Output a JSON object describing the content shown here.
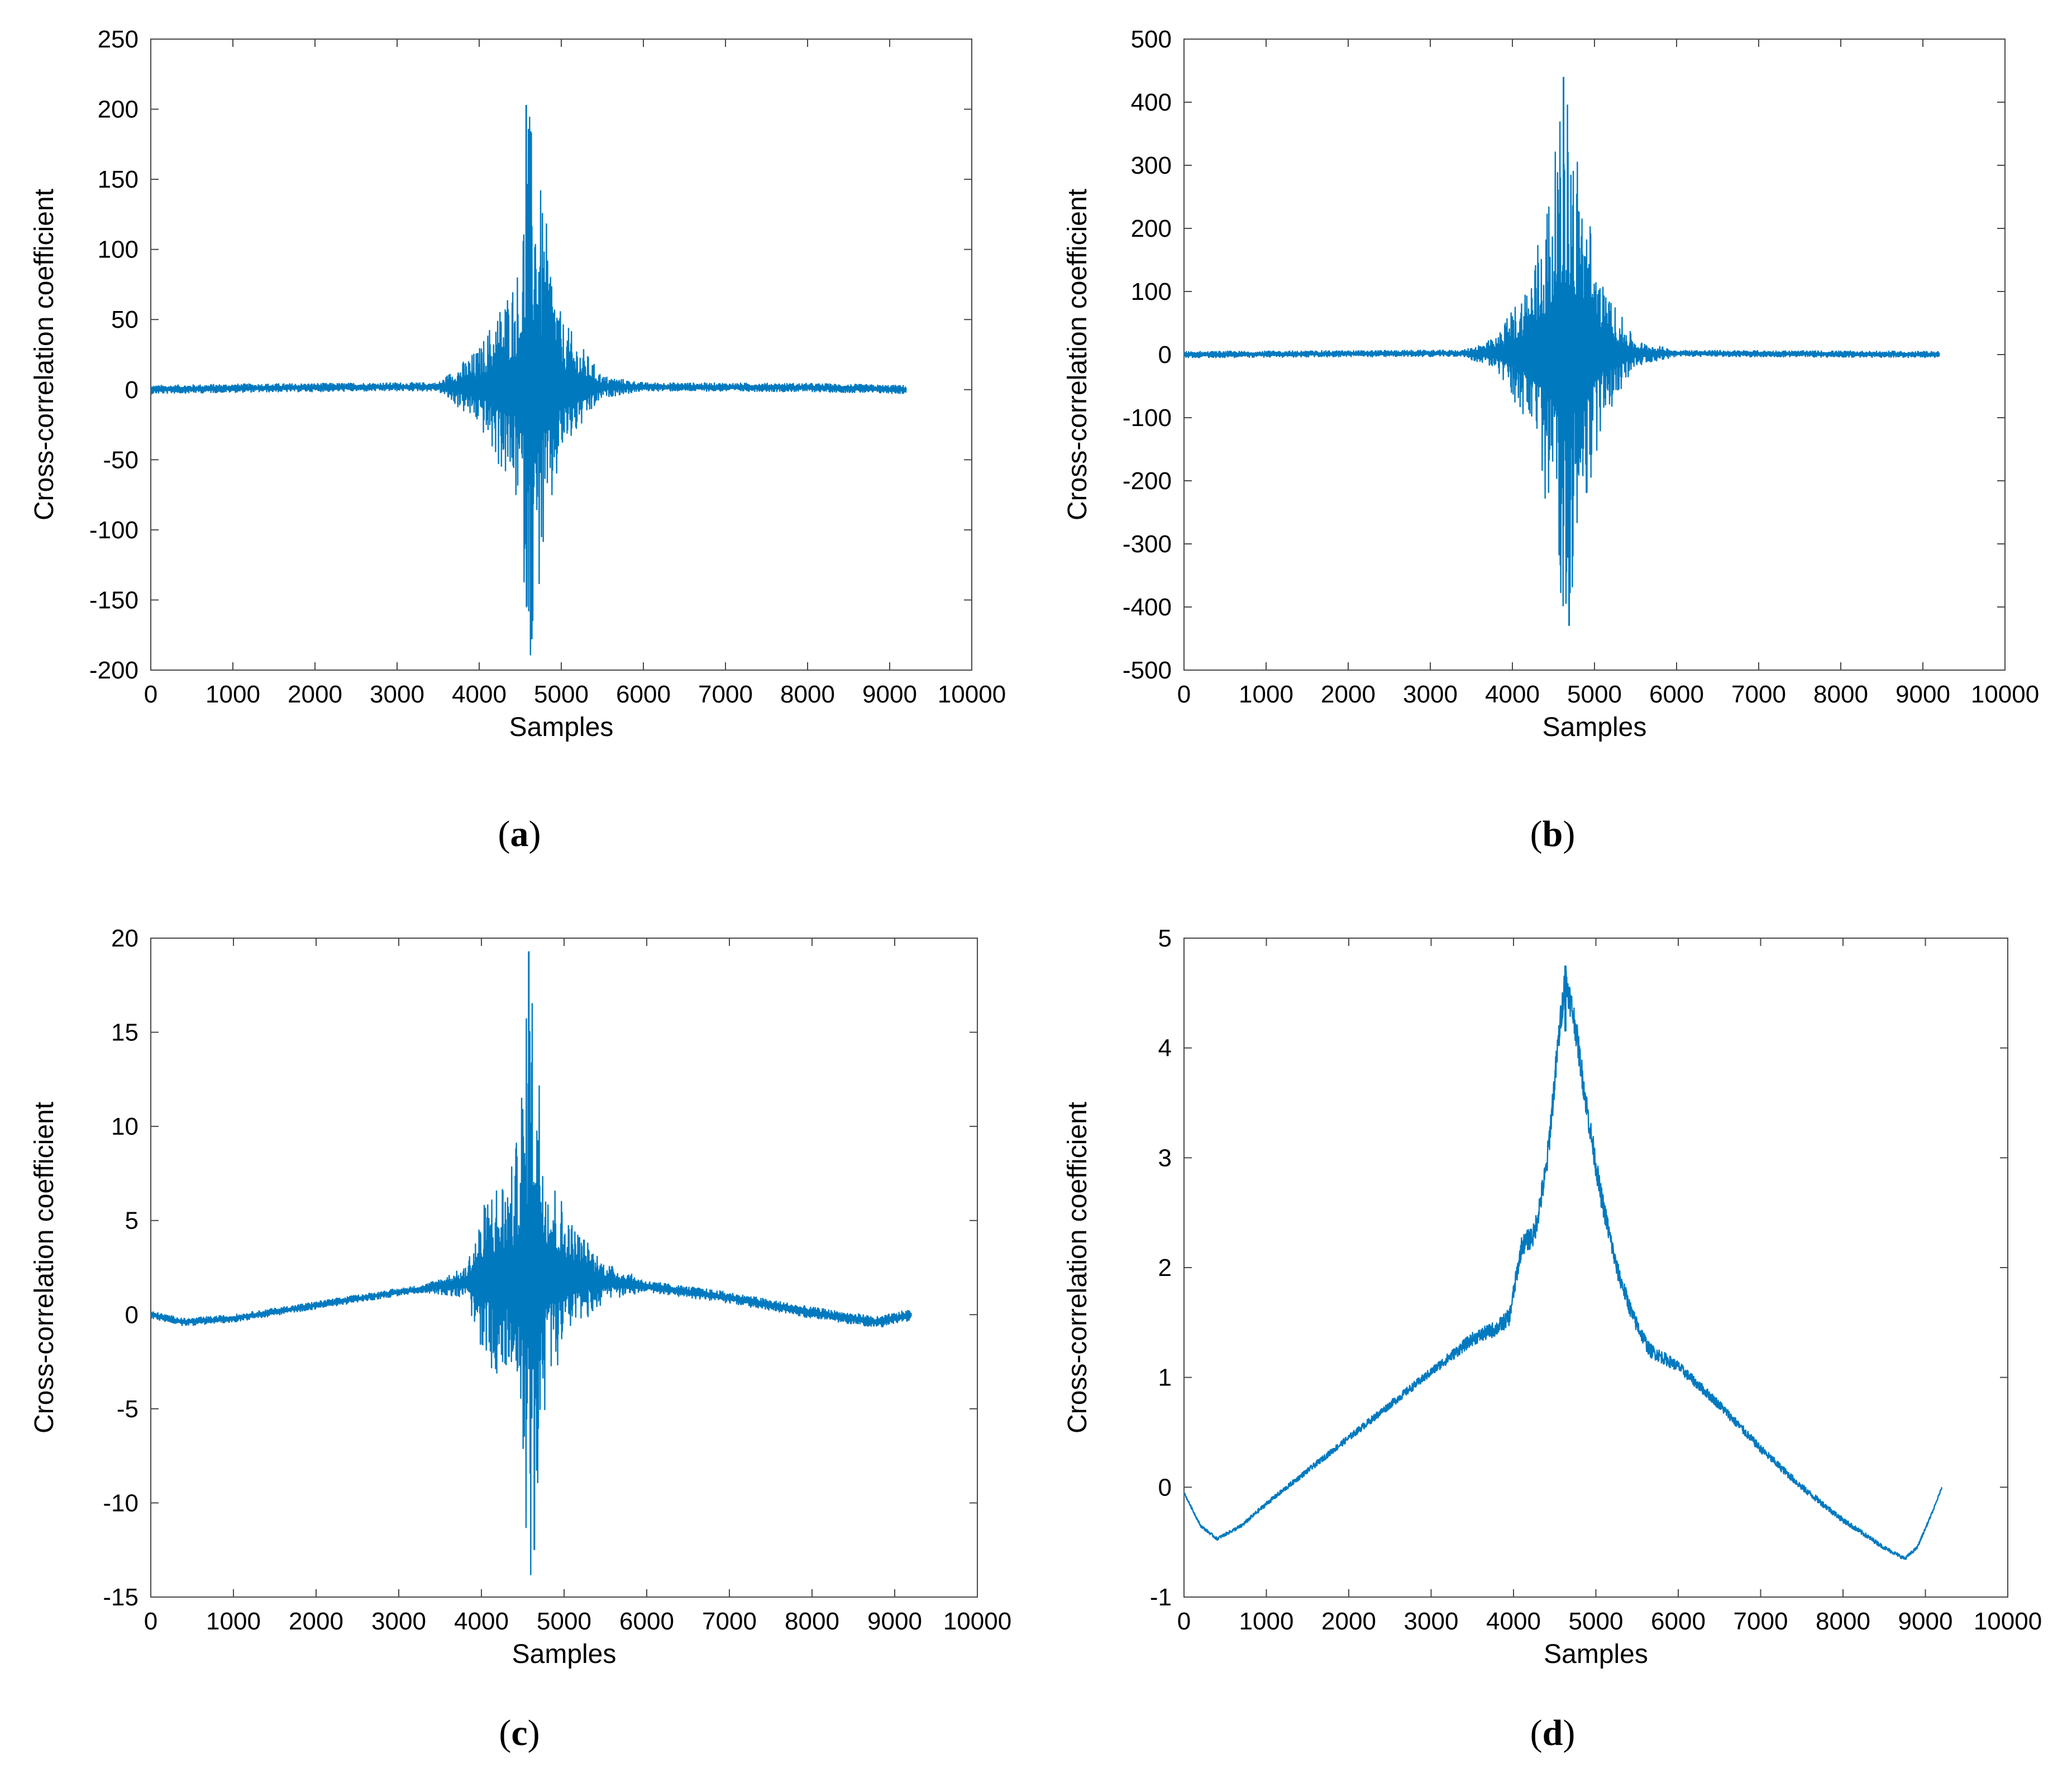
{
  "figure": {
    "series_color": "#0079BF",
    "axis_color": "#4a4a4a"
  },
  "chart_data": [
    {
      "panel": "a",
      "type": "line",
      "panel_label": "a",
      "xlabel": "Samples",
      "ylabel": "Cross-correlation coefficient",
      "xlim": [
        0,
        10000
      ],
      "ylim": [
        -200,
        250
      ],
      "xticks": [
        0,
        1000,
        2000,
        3000,
        4000,
        5000,
        6000,
        7000,
        8000,
        9000,
        10000
      ],
      "yticks": [
        -200,
        -150,
        -100,
        -50,
        0,
        50,
        100,
        150,
        200,
        250
      ],
      "signal": {
        "x_start": 0,
        "x_end": 9200,
        "center": 4600,
        "peak_max": 203,
        "peak_min": -178,
        "burst_width": 450,
        "burst_envelope": [
          [
            3500,
            3
          ],
          [
            4000,
            28
          ],
          [
            4500,
            90
          ],
          [
            4600,
            203
          ],
          [
            4700,
            160
          ],
          [
            5000,
            50
          ],
          [
            5500,
            8
          ],
          [
            6000,
            3
          ]
        ],
        "baseline": [
          [
            0,
            0
          ],
          [
            1000,
            1
          ],
          [
            3000,
            2
          ],
          [
            4600,
            2
          ],
          [
            6000,
            2
          ],
          [
            8000,
            1.5
          ],
          [
            9200,
            0
          ]
        ]
      }
    },
    {
      "panel": "b",
      "type": "line",
      "panel_label": "b",
      "xlabel": "Samples",
      "ylabel": "Cross-correlation coefficient",
      "xlim": [
        0,
        10000
      ],
      "ylim": [
        -500,
        500
      ],
      "xticks": [
        0,
        1000,
        2000,
        3000,
        4000,
        5000,
        6000,
        7000,
        8000,
        9000,
        10000
      ],
      "yticks": [
        -500,
        -400,
        -300,
        -200,
        -100,
        0,
        100,
        200,
        300,
        400,
        500
      ],
      "signal": {
        "x_start": 0,
        "x_end": 9200,
        "center": 4650,
        "peak_max": 440,
        "peak_min": -430,
        "burst_envelope": [
          [
            3400,
            5
          ],
          [
            3800,
            25
          ],
          [
            4200,
            120
          ],
          [
            4500,
            300
          ],
          [
            4650,
            440
          ],
          [
            4800,
            320
          ],
          [
            5100,
            110
          ],
          [
            5500,
            20
          ],
          [
            6000,
            5
          ]
        ],
        "baseline": [
          [
            0,
            0
          ],
          [
            3000,
            2
          ],
          [
            6000,
            2
          ],
          [
            9200,
            0
          ]
        ]
      }
    },
    {
      "panel": "c",
      "type": "line",
      "panel_label": "c",
      "xlabel": "Samples",
      "ylabel": "Cross-correlation coefficient",
      "xlim": [
        0,
        10000
      ],
      "ylim": [
        -15,
        20
      ],
      "xticks": [
        0,
        1000,
        2000,
        3000,
        4000,
        5000,
        6000,
        7000,
        8000,
        9000,
        10000
      ],
      "yticks": [
        -15,
        -10,
        -5,
        0,
        5,
        10,
        15,
        20
      ],
      "signal": {
        "x_start": 0,
        "x_end": 9200,
        "center": 4600,
        "peak_max": 19.3,
        "peak_min": -12.5,
        "burst_envelope": [
          [
            3300,
            0.2
          ],
          [
            3800,
            0.8
          ],
          [
            4100,
            5
          ],
          [
            4400,
            6
          ],
          [
            4600,
            17
          ],
          [
            4800,
            6
          ],
          [
            5100,
            3
          ],
          [
            5500,
            1
          ],
          [
            6000,
            0.3
          ]
        ],
        "baseline": [
          [
            0,
            0
          ],
          [
            400,
            -0.4
          ],
          [
            1000,
            -0.2
          ],
          [
            2000,
            0.5
          ],
          [
            3000,
            1.2
          ],
          [
            4600,
            2.2
          ],
          [
            6000,
            1.5
          ],
          [
            7000,
            0.9
          ],
          [
            8000,
            0.1
          ],
          [
            8800,
            -0.4
          ],
          [
            9200,
            0
          ]
        ]
      }
    },
    {
      "panel": "d",
      "type": "line",
      "panel_label": "d",
      "xlabel": "Samples",
      "ylabel": "Cross-correlation coefficient",
      "xlim": [
        0,
        10000
      ],
      "ylim": [
        -1,
        5
      ],
      "xticks": [
        0,
        1000,
        2000,
        3000,
        4000,
        5000,
        6000,
        7000,
        8000,
        9000,
        10000
      ],
      "yticks": [
        -1,
        0,
        1,
        2,
        3,
        4,
        5
      ],
      "signal": {
        "x_start": 0,
        "x_end": 9200,
        "center": 4630,
        "peak_max": 4.75,
        "curve": [
          [
            0,
            -0.05
          ],
          [
            200,
            -0.35
          ],
          [
            400,
            -0.47
          ],
          [
            700,
            -0.35
          ],
          [
            1000,
            -0.15
          ],
          [
            1500,
            0.15
          ],
          [
            2000,
            0.45
          ],
          [
            2500,
            0.75
          ],
          [
            3000,
            1.05
          ],
          [
            3500,
            1.35
          ],
          [
            3800,
            1.45
          ],
          [
            3950,
            1.55
          ],
          [
            4100,
            2.2
          ],
          [
            4250,
            2.3
          ],
          [
            4400,
            2.9
          ],
          [
            4550,
            4.1
          ],
          [
            4630,
            4.65
          ],
          [
            4750,
            4.2
          ],
          [
            4900,
            3.4
          ],
          [
            5050,
            2.7
          ],
          [
            5250,
            2.0
          ],
          [
            5450,
            1.55
          ],
          [
            5650,
            1.25
          ],
          [
            6000,
            1.1
          ],
          [
            6500,
            0.75
          ],
          [
            7000,
            0.35
          ],
          [
            7500,
            0.0
          ],
          [
            8000,
            -0.3
          ],
          [
            8500,
            -0.55
          ],
          [
            8750,
            -0.65
          ],
          [
            8900,
            -0.55
          ],
          [
            9100,
            -0.2
          ],
          [
            9200,
            0.0
          ]
        ],
        "noise": [
          [
            0,
            0.01
          ],
          [
            3000,
            0.04
          ],
          [
            4000,
            0.08
          ],
          [
            4630,
            0.15
          ],
          [
            5300,
            0.08
          ],
          [
            6000,
            0.05
          ],
          [
            9200,
            0.01
          ]
        ]
      }
    }
  ]
}
